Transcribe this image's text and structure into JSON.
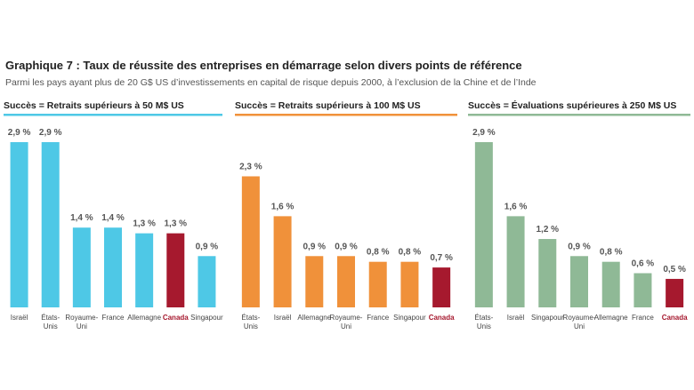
{
  "title": "Graphique 7 : Taux de réussite des entreprises en démarrage selon divers points de référence",
  "subtitle": "Parmi les pays ayant plus de 20 G$ US d’investissements en capital de risque depuis 2000, à l’exclusion de la Chine et de l’Inde",
  "chart_data": [
    {
      "type": "bar",
      "title": "Succès = Retraits supérieurs à 50 M$ US",
      "color": "#4ec8e6",
      "categories": [
        "Israël",
        "États-Unis",
        "Royaume-Uni",
        "France",
        "Allemagne",
        "Canada",
        "Singapour"
      ],
      "values": [
        2.9,
        2.9,
        1.4,
        1.4,
        1.3,
        1.3,
        0.9
      ],
      "value_labels": [
        "2,9 %",
        "2,9 %",
        "1,4 %",
        "1,4 %",
        "1,3 %",
        "1,3 %",
        "0,9 %"
      ],
      "colors": [
        "#4ec8e6",
        "#4ec8e6",
        "#4ec8e6",
        "#4ec8e6",
        "#4ec8e6",
        "#a6192e",
        "#4ec8e6"
      ]
    },
    {
      "type": "bar",
      "title": "Succès = Retraits supérieurs à 100 M$ US",
      "color": "#f0913a",
      "categories": [
        "États-Unis",
        "Israël",
        "Allemagne",
        "Royaume-Uni",
        "France",
        "Singapour",
        "Canada"
      ],
      "values": [
        2.3,
        1.6,
        0.9,
        0.9,
        0.8,
        0.8,
        0.7
      ],
      "value_labels": [
        "2,3 %",
        "1,6 %",
        "0,9 %",
        "0,9 %",
        "0,8 %",
        "0,8 %",
        "0,7 %"
      ],
      "colors": [
        "#f0913a",
        "#f0913a",
        "#f0913a",
        "#f0913a",
        "#f0913a",
        "#f0913a",
        "#a6192e"
      ]
    },
    {
      "type": "bar",
      "title": "Succès = Évaluations supérieures à 250 M$ US",
      "color": "#8fb996",
      "categories": [
        "États-Unis",
        "Israël",
        "Singapour",
        "Royaume-Uni",
        "Allemagne",
        "France",
        "Canada"
      ],
      "values": [
        2.9,
        1.6,
        1.2,
        0.9,
        0.8,
        0.6,
        0.5
      ],
      "value_labels": [
        "2,9 %",
        "1,6 %",
        "1,2 %",
        "0,9 %",
        "0,8 %",
        "0,6 %",
        "0,5 %"
      ],
      "colors": [
        "#8fb996",
        "#8fb996",
        "#8fb996",
        "#8fb996",
        "#8fb996",
        "#8fb996",
        "#a6192e"
      ]
    }
  ]
}
